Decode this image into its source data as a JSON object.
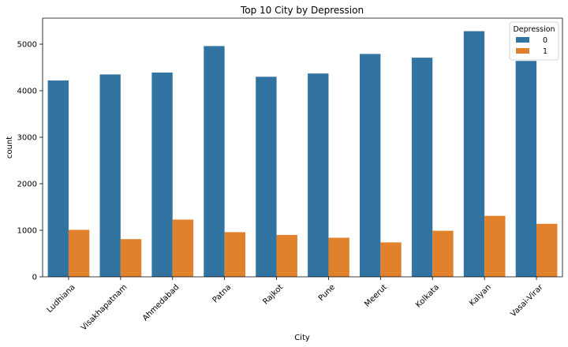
{
  "chart_data": {
    "type": "bar",
    "title": "Top 10 City by Depression",
    "xlabel": "City",
    "ylabel": "count",
    "categories": [
      "Ludhiana",
      "Visakhapatnam",
      "Ahmedabad",
      "Patna",
      "Rajkot",
      "Pune",
      "Meerut",
      "Kolkata",
      "Kalyan",
      "Vasai-Virar"
    ],
    "series": [
      {
        "name": "0",
        "color": "#3274a1",
        "values": [
          4220,
          4350,
          4390,
          4960,
          4300,
          4370,
          4790,
          4710,
          5280,
          4640
        ]
      },
      {
        "name": "1",
        "color": "#e1812c",
        "values": [
          1010,
          810,
          1230,
          960,
          900,
          840,
          740,
          990,
          1310,
          1140
        ]
      }
    ],
    "ylim": [
      0,
      5560
    ],
    "yticks": [
      0,
      1000,
      2000,
      3000,
      4000,
      5000
    ],
    "legend": {
      "title": "Depression",
      "placement": "top-right"
    },
    "grid": false
  }
}
